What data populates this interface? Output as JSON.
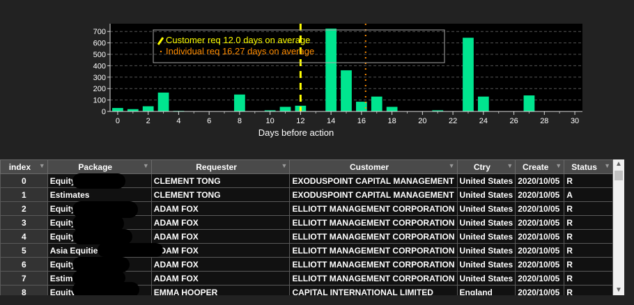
{
  "chart_data": {
    "type": "bar",
    "xlabel": "Days before action",
    "x": [
      0,
      1,
      2,
      3,
      4,
      5,
      6,
      7,
      8,
      9,
      10,
      11,
      12,
      13,
      14,
      15,
      16,
      17,
      18,
      19,
      20,
      21,
      22,
      23,
      24,
      25,
      26,
      27,
      28,
      29,
      30
    ],
    "values": [
      30,
      20,
      45,
      165,
      5,
      0,
      3,
      0,
      148,
      0,
      10,
      40,
      50,
      0,
      725,
      360,
      85,
      130,
      40,
      0,
      0,
      10,
      0,
      645,
      130,
      0,
      0,
      140,
      0,
      0,
      0
    ],
    "xlim": [
      -0.5,
      30.5
    ],
    "ylim": [
      0,
      750
    ],
    "xticks": [
      0,
      2,
      4,
      6,
      8,
      10,
      12,
      14,
      16,
      18,
      20,
      22,
      24,
      26,
      28,
      30
    ],
    "yticks": [
      0,
      100,
      200,
      300,
      400,
      500,
      600,
      700
    ],
    "grid": true,
    "legend_placement": "top-left",
    "colors": {
      "bar": "#00e58f",
      "customer_line": "#ffff00",
      "individual_line": "#ff8c00",
      "plot_bg": "#000000"
    },
    "annotations": [
      {
        "label": "Customer req 12.0 days on average",
        "x": 12.0,
        "style": "dashed"
      },
      {
        "label": "Individual req 16.27 days on average",
        "x": 16.27,
        "style": "dotted"
      }
    ]
  },
  "grid": {
    "columns": [
      {
        "key": "index",
        "label": "index"
      },
      {
        "key": "package",
        "label": "Package"
      },
      {
        "key": "requester",
        "label": "Requester"
      },
      {
        "key": "customer",
        "label": "Customer"
      },
      {
        "key": "ctry",
        "label": "Ctry"
      },
      {
        "key": "created",
        "label": "Create"
      },
      {
        "key": "status",
        "label": "Status"
      }
    ],
    "filter_icon": "filter-icon",
    "rows": [
      {
        "index": "0",
        "package": "Equity",
        "requester": "CLEMENT TONG",
        "customer": "EXODUSPOINT CAPITAL MANAGEMENT",
        "ctry": "United States",
        "created": "2020/10/05",
        "status": "R"
      },
      {
        "index": "1",
        "package": "Estimates",
        "requester": "CLEMENT TONG",
        "customer": "EXODUSPOINT CAPITAL MANAGEMENT",
        "ctry": "United States",
        "created": "2020/10/05",
        "status": "A"
      },
      {
        "index": "2",
        "package": "Equity",
        "requester": "ADAM FOX",
        "customer": "ELLIOTT MANAGEMENT CORPORATION",
        "ctry": "United States",
        "created": "2020/10/05",
        "status": "R"
      },
      {
        "index": "3",
        "package": "Equity |",
        "requester": "ADAM FOX",
        "customer": "ELLIOTT MANAGEMENT CORPORATION",
        "ctry": "United States",
        "created": "2020/10/05",
        "status": "R"
      },
      {
        "index": "4",
        "package": "Equity |",
        "requester": "ADAM FOX",
        "customer": "ELLIOTT MANAGEMENT CORPORATION",
        "ctry": "United States",
        "created": "2020/10/05",
        "status": "R"
      },
      {
        "index": "5",
        "package": "Asia Equities",
        "requester": "ADAM FOX",
        "customer": "ELLIOTT MANAGEMENT CORPORATION",
        "ctry": "United States",
        "created": "2020/10/05",
        "status": "R"
      },
      {
        "index": "6",
        "package": "Equity",
        "requester": "ADAM FOX",
        "customer": "ELLIOTT MANAGEMENT CORPORATION",
        "ctry": "United States",
        "created": "2020/10/05",
        "status": "R"
      },
      {
        "index": "7",
        "package": "Estimates",
        "requester": "ADAM FOX",
        "customer": "ELLIOTT MANAGEMENT CORPORATION",
        "ctry": "United States",
        "created": "2020/10/05",
        "status": "R"
      },
      {
        "index": "8",
        "package": "Equity",
        "requester": "EMMA HOOPER",
        "customer": "CAPITAL INTERNATIONAL LIMITED",
        "ctry": "England",
        "created": "2020/10/05",
        "status": "R"
      }
    ]
  },
  "scrollbar": {
    "up_icon": "arrow-up-icon",
    "down_icon": "arrow-down-icon"
  }
}
